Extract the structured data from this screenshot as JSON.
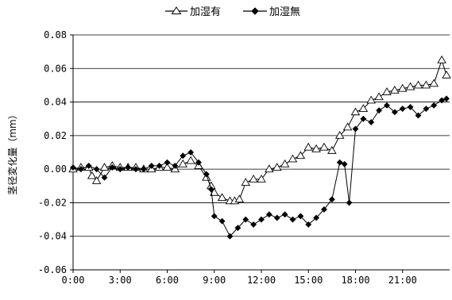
{
  "chart_data": {
    "type": "line",
    "title": "",
    "xlabel": "",
    "ylabel": "茎径変化量（mm）",
    "x_ticks": [
      "0:00",
      "3:00",
      "6:00",
      "9:00",
      "12:00",
      "15:00",
      "18:00",
      "21:00"
    ],
    "y_ticks": [
      "0.08",
      "0.06",
      "0.04",
      "0.02",
      "0.00",
      "-0.02",
      "-0.04",
      "-0.06"
    ],
    "xlim_hours": [
      0,
      24
    ],
    "ylim": [
      -0.06,
      0.08
    ],
    "grid": "horizontal",
    "legend_position": "top-center",
    "series": [
      {
        "name": "加湿有",
        "marker": "open-triangle",
        "color": "#000000",
        "x": [
          0.0,
          0.5,
          1.0,
          1.2,
          1.5,
          2.0,
          2.5,
          3.0,
          3.5,
          4.0,
          4.5,
          5.0,
          5.5,
          6.0,
          6.5,
          7.0,
          7.5,
          8.0,
          8.5,
          8.8,
          9.0,
          9.5,
          10.0,
          10.3,
          10.6,
          11.0,
          11.5,
          12.0,
          12.5,
          13.0,
          13.5,
          14.0,
          14.5,
          15.0,
          15.5,
          16.0,
          16.5,
          17.0,
          17.5,
          18.0,
          18.5,
          19.0,
          19.5,
          20.0,
          20.5,
          21.0,
          21.5,
          22.0,
          22.5,
          23.0,
          23.5,
          23.8
        ],
        "y": [
          0.0,
          0.001,
          0.001,
          -0.004,
          -0.007,
          0.001,
          0.002,
          0.001,
          0.001,
          0.001,
          0.0,
          0.0,
          0.001,
          0.001,
          0.0,
          0.003,
          0.005,
          0.002,
          -0.005,
          -0.01,
          -0.014,
          -0.017,
          -0.019,
          -0.019,
          -0.018,
          -0.008,
          -0.006,
          -0.006,
          0.0,
          0.001,
          0.003,
          0.006,
          0.008,
          0.013,
          0.012,
          0.013,
          0.011,
          0.02,
          0.025,
          0.034,
          0.036,
          0.041,
          0.043,
          0.046,
          0.047,
          0.048,
          0.049,
          0.05,
          0.05,
          0.051,
          0.065,
          0.056
        ]
      },
      {
        "name": "加湿無",
        "marker": "filled-diamond",
        "color": "#000000",
        "x": [
          0.0,
          0.5,
          1.0,
          1.5,
          2.0,
          2.5,
          3.0,
          3.5,
          4.0,
          4.5,
          5.0,
          5.5,
          6.0,
          6.5,
          7.0,
          7.5,
          8.0,
          8.5,
          8.8,
          9.0,
          9.5,
          10.0,
          10.5,
          11.0,
          11.5,
          12.0,
          12.5,
          13.0,
          13.5,
          14.0,
          14.5,
          15.0,
          15.5,
          16.0,
          16.5,
          17.0,
          17.3,
          17.6,
          18.0,
          18.5,
          19.0,
          19.5,
          20.0,
          20.5,
          21.0,
          21.5,
          22.0,
          22.5,
          23.0,
          23.5,
          23.8
        ],
        "y": [
          0.001,
          0.0,
          0.002,
          0.0,
          -0.005,
          0.001,
          0.0,
          0.001,
          0.0,
          0.0,
          0.002,
          0.002,
          0.004,
          0.002,
          0.008,
          0.01,
          0.004,
          -0.003,
          -0.012,
          -0.028,
          -0.031,
          -0.04,
          -0.035,
          -0.03,
          -0.033,
          -0.03,
          -0.027,
          -0.029,
          -0.027,
          -0.03,
          -0.028,
          -0.033,
          -0.029,
          -0.024,
          -0.018,
          0.004,
          0.003,
          -0.02,
          0.024,
          0.03,
          0.028,
          0.035,
          0.038,
          0.034,
          0.036,
          0.037,
          0.032,
          0.036,
          0.038,
          0.041,
          0.042
        ]
      }
    ]
  }
}
